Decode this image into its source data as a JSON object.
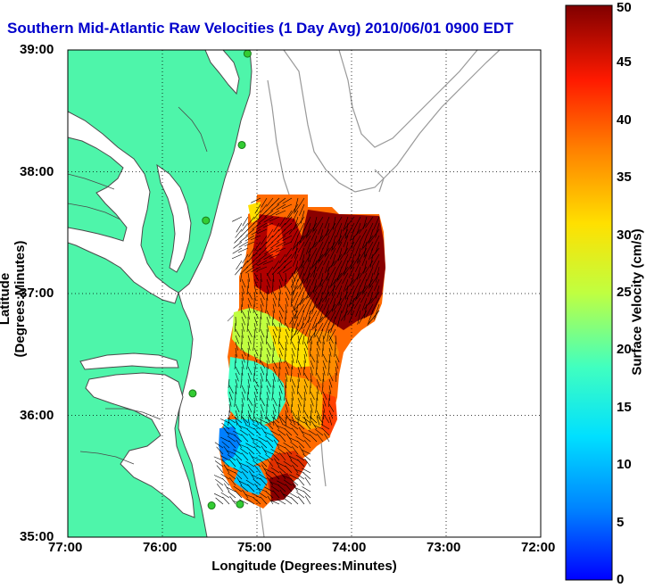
{
  "title": "Southern Mid-Atlantic Raw Velocities (1 Day Avg) 2010/06/01 0900 EDT",
  "axes": {
    "xlabel": "Longitude (Degrees:Minutes)",
    "ylabel": "Latitude (Degrees:Minutes)",
    "xticks": [
      "77:00",
      "76:00",
      "75:00",
      "74:00",
      "73:00",
      "72:00"
    ],
    "yticks": [
      "39:00",
      "38:00",
      "37:00",
      "36:00",
      "35:00"
    ],
    "xrange_deg_west": [
      77,
      72
    ],
    "yrange_deg_north": [
      35,
      39
    ],
    "grid": "dotted"
  },
  "colorbar": {
    "label": "Surface Velocity (cm/s)",
    "ticks": [
      "0",
      "5",
      "10",
      "15",
      "20",
      "25",
      "30",
      "35",
      "40",
      "45",
      "50"
    ],
    "min": 0,
    "max": 50,
    "colormap": "jet"
  },
  "colors": {
    "land": "#4ef5aa",
    "water": "#ffffff",
    "coast": "#555555",
    "bathymetry": "#999999",
    "title": "#0000cc",
    "station": "#33cc33"
  },
  "stations": [
    {
      "lon": 75.1,
      "lat": 38.97
    },
    {
      "lon": 75.16,
      "lat": 38.22
    },
    {
      "lon": 75.54,
      "lat": 37.6
    },
    {
      "lon": 75.68,
      "lat": 36.18
    },
    {
      "lon": 75.48,
      "lat": 35.26
    },
    {
      "lon": 75.18,
      "lat": 35.27
    }
  ]
}
